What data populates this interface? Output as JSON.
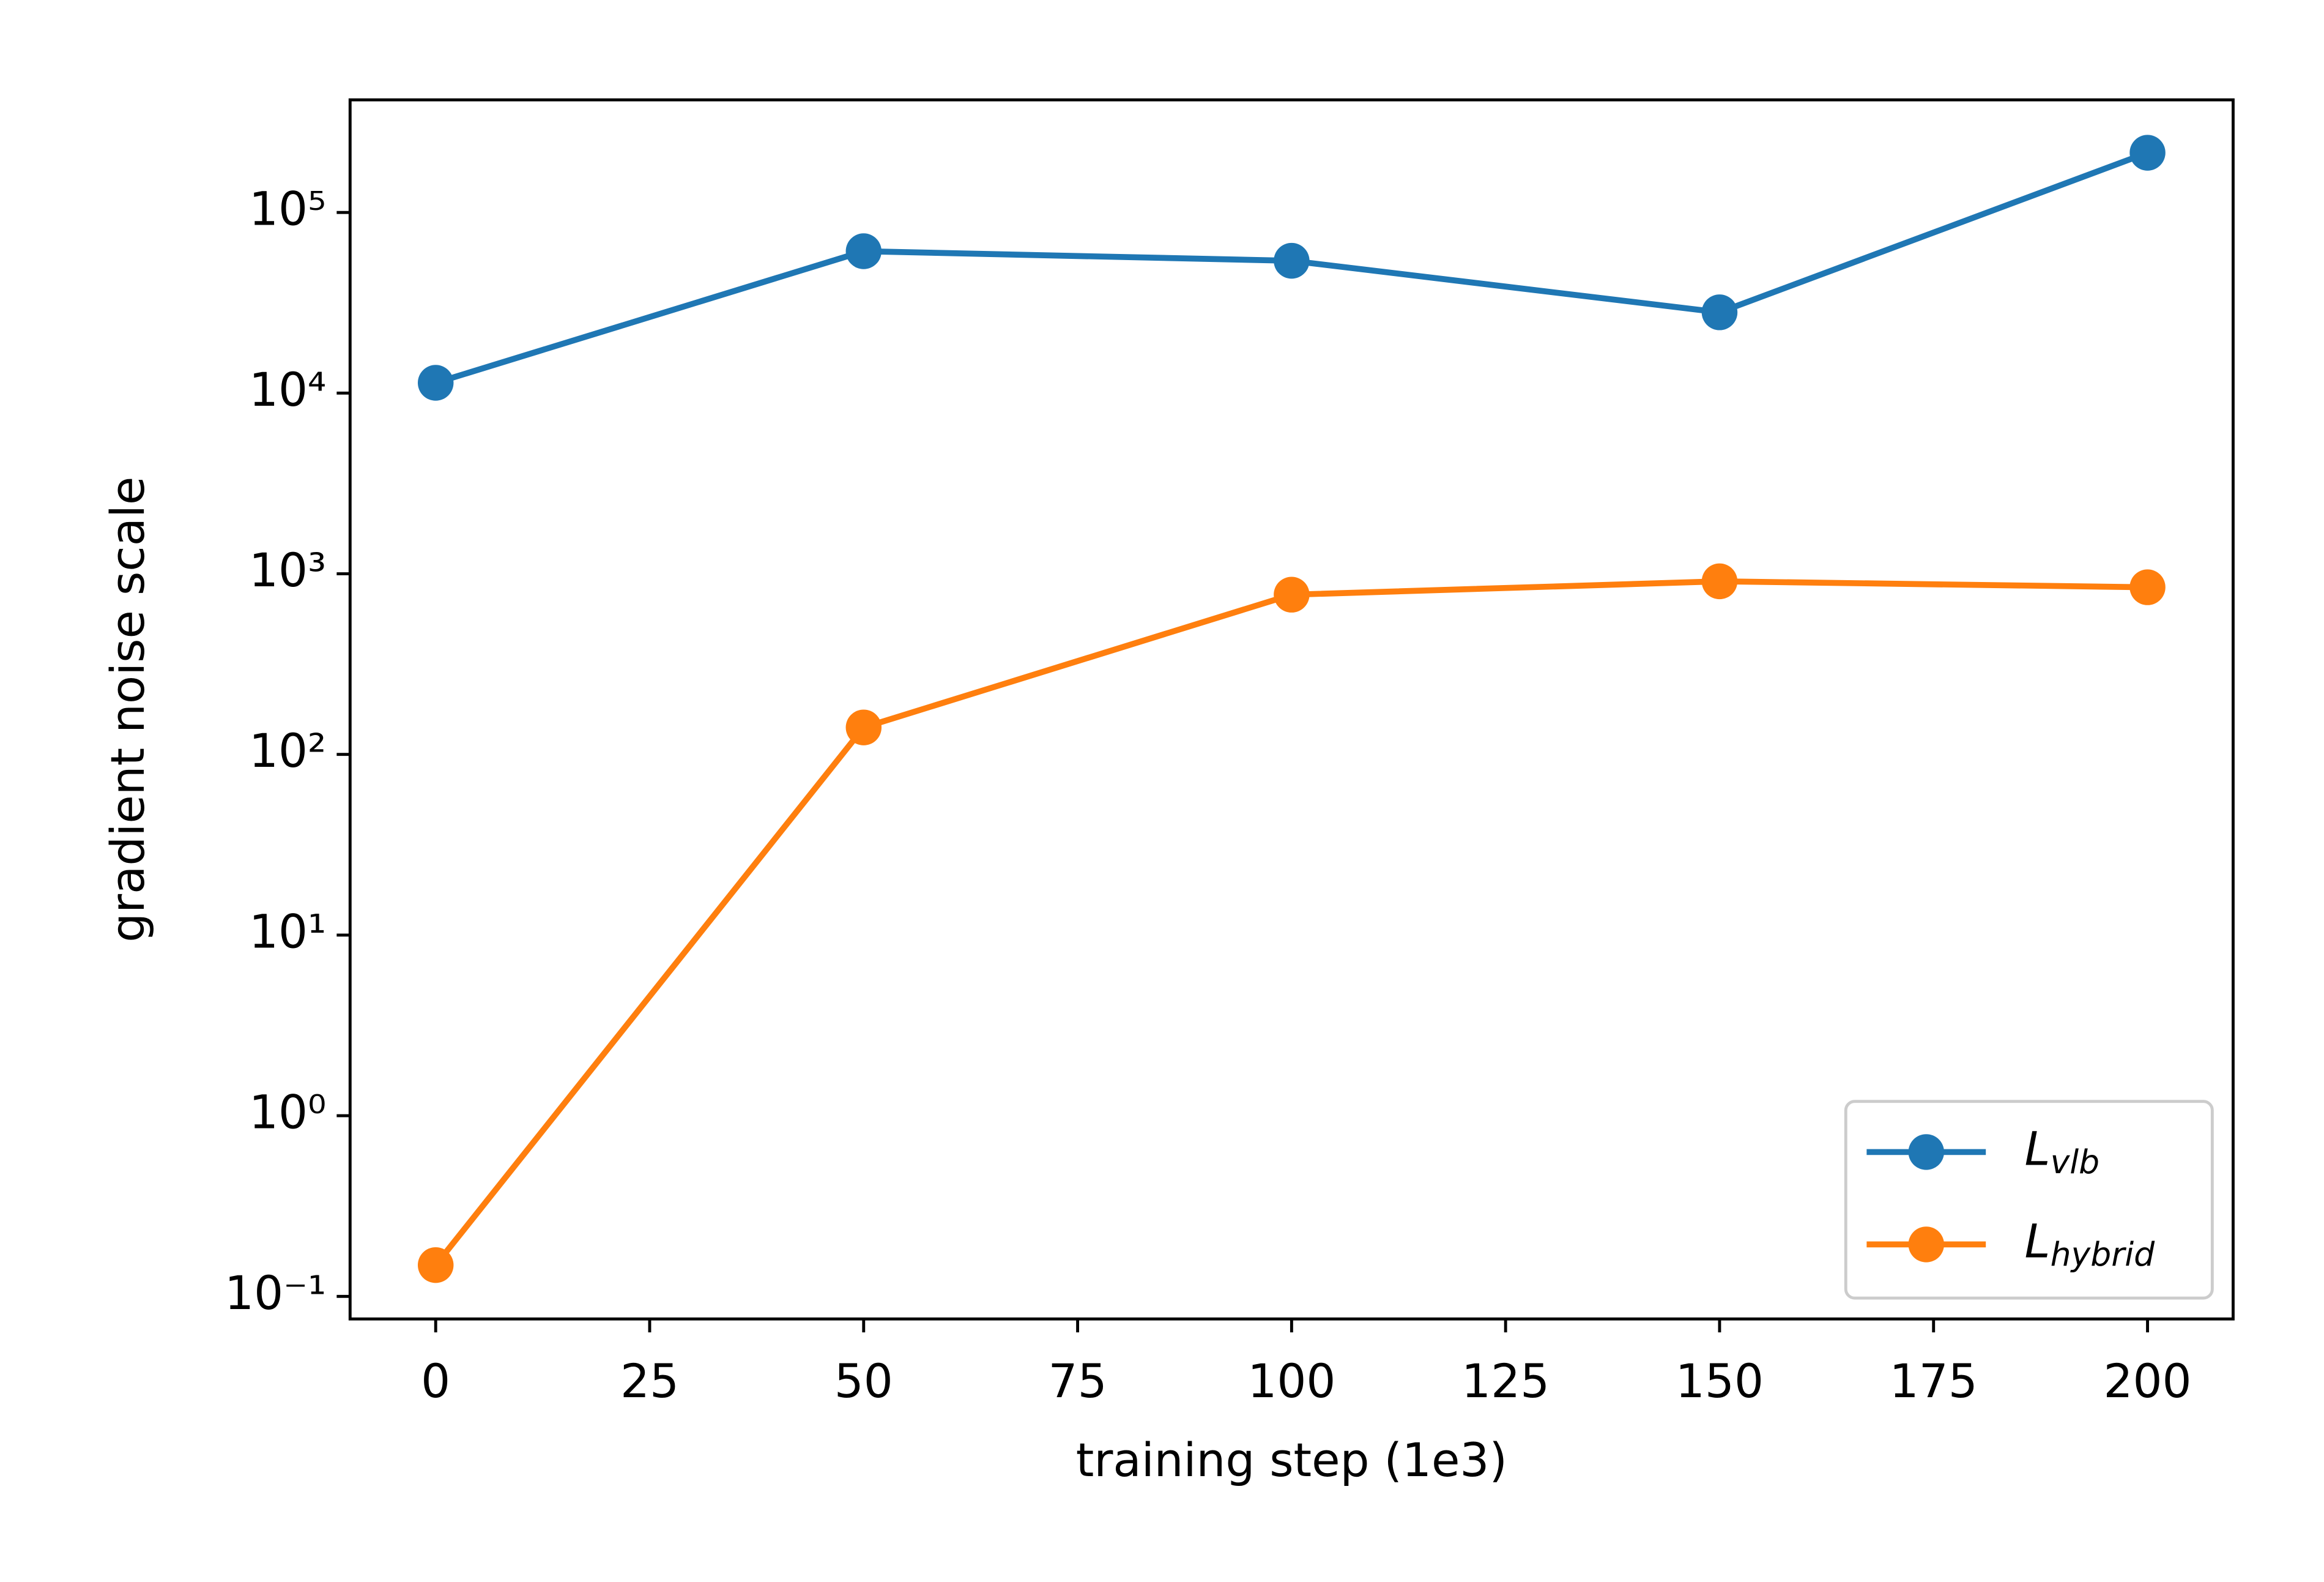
{
  "chart_data": {
    "type": "line",
    "x_label": "training step (1e3)",
    "y_label": "gradient noise scale",
    "x": [
      0,
      50,
      100,
      150,
      200
    ],
    "series": [
      {
        "name": "Lvlb",
        "color": "#1f77b4",
        "values": [
          11400,
          61000,
          54000,
          28000,
          214000
        ]
      },
      {
        "name": "Lhybrid",
        "color": "#ff7f0e",
        "values": [
          0.149,
          141,
          766,
          908,
          842
        ]
      }
    ],
    "xlim": [
      -10,
      210
    ],
    "xticks": [
      0,
      25,
      50,
      75,
      100,
      125,
      150,
      175,
      200
    ],
    "ylim": [
      0.075,
      420000
    ],
    "yticks": [
      {
        "value": 0.1,
        "label": "10⁻¹"
      },
      {
        "value": 1,
        "label": "10⁰"
      },
      {
        "value": 10,
        "label": "10¹"
      },
      {
        "value": 100,
        "label": "10²"
      },
      {
        "value": 1000,
        "label": "10³"
      },
      {
        "value": 10000,
        "label": "10⁴"
      },
      {
        "value": 100000,
        "label": "10⁵"
      }
    ],
    "log_y": true,
    "grid": false,
    "legend": "lower right"
  }
}
